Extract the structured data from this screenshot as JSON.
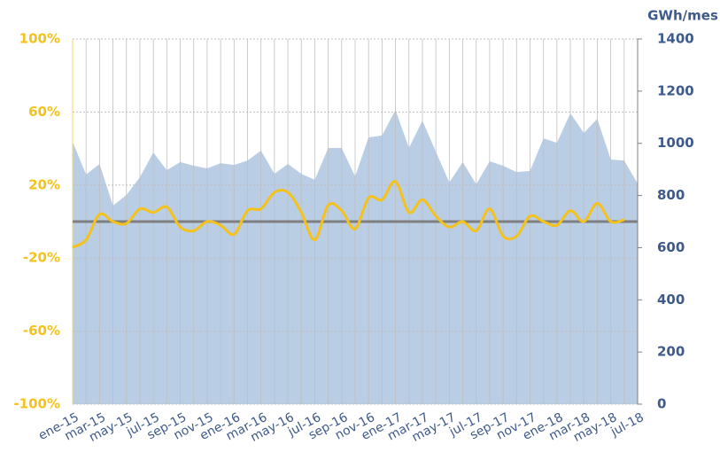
{
  "chart_data": {
    "type": "line-area",
    "y2_label": "GWh/mes",
    "categories": [
      "ene-15",
      null,
      "mar-15",
      null,
      "may-15",
      null,
      "jul-15",
      null,
      "sep-15",
      null,
      "nov-15",
      null,
      "ene-16",
      null,
      "mar-16",
      null,
      "may-16",
      null,
      "jul-16",
      null,
      "sep-16",
      null,
      "nov-16",
      null,
      "ene-17",
      null,
      "mar-17",
      null,
      "may-17",
      null,
      "jul-17",
      null,
      "sep-17",
      null,
      "nov-17",
      null,
      "ene-18",
      null,
      "mar-18",
      null,
      "may-18",
      null,
      "jul-18"
    ],
    "series": [
      {
        "type": "area",
        "axis": "y2",
        "color": "#b9cde5",
        "values": [
          1006,
          880,
          921,
          761,
          802,
          870,
          965,
          897,
          928,
          914,
          904,
          924,
          917,
          934,
          972,
          883,
          921,
          883,
          860,
          982,
          982,
          873,
          1023,
          1030,
          1128,
          982,
          1087,
          968,
          850,
          928,
          843,
          931,
          914,
          890,
          894,
          1019,
          1002,
          1115,
          1040,
          1094,
          938,
          934,
          846
        ]
      },
      {
        "type": "line",
        "axis": "y",
        "color": "#f5c21b",
        "values": [
          -14,
          -10,
          4,
          0,
          -1,
          7,
          5,
          8,
          -3,
          -5,
          0,
          -2,
          -7,
          6,
          7,
          16,
          16,
          5,
          -10,
          9,
          6,
          -4,
          13,
          12,
          22,
          5,
          12,
          3,
          -3,
          0,
          -5,
          7,
          -8,
          -8,
          3,
          0,
          -2,
          6,
          0,
          10,
          0,
          1,
          null
        ]
      }
    ],
    "ylim": [
      -100,
      100
    ],
    "yticks": [
      {
        "value": -100,
        "label": "-100%"
      },
      {
        "value": -60,
        "label": "-60%"
      },
      {
        "value": -20,
        "label": "-20%"
      },
      {
        "value": 20,
        "label": "20%"
      },
      {
        "value": 60,
        "label": "60%"
      },
      {
        "value": 100,
        "label": "100%"
      }
    ],
    "y2lim": [
      0,
      1400
    ],
    "y2ticks": [
      0,
      200,
      400,
      600,
      800,
      1000,
      1200,
      1400
    ],
    "reference_line": 0,
    "grid": true
  }
}
